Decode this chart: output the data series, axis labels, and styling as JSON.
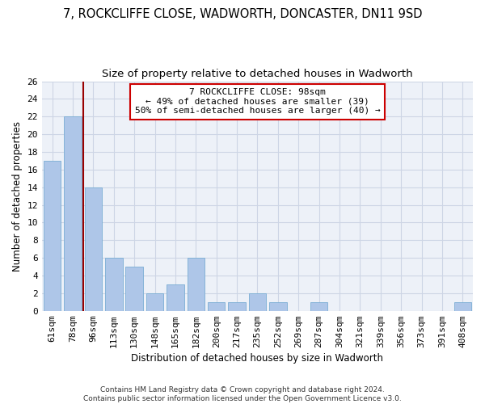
{
  "title": "7, ROCKCLIFFE CLOSE, WADWORTH, DONCASTER, DN11 9SD",
  "subtitle": "Size of property relative to detached houses in Wadworth",
  "xlabel": "Distribution of detached houses by size in Wadworth",
  "ylabel": "Number of detached properties",
  "categories": [
    "61sqm",
    "78sqm",
    "96sqm",
    "113sqm",
    "130sqm",
    "148sqm",
    "165sqm",
    "182sqm",
    "200sqm",
    "217sqm",
    "235sqm",
    "252sqm",
    "269sqm",
    "287sqm",
    "304sqm",
    "321sqm",
    "339sqm",
    "356sqm",
    "373sqm",
    "391sqm",
    "408sqm"
  ],
  "values": [
    17,
    22,
    14,
    6,
    5,
    2,
    3,
    6,
    1,
    1,
    2,
    1,
    0,
    1,
    0,
    0,
    0,
    0,
    0,
    0,
    1
  ],
  "bar_color": "#aec6e8",
  "bar_edge_color": "#7aadd4",
  "vline_x_idx": 1,
  "vline_color": "#990000",
  "annotation_box_text": "7 ROCKCLIFFE CLOSE: 98sqm\n← 49% of detached houses are smaller (39)\n50% of semi-detached houses are larger (40) →",
  "annotation_box_color": "#cc0000",
  "annotation_box_bg": "#ffffff",
  "ylim": [
    0,
    26
  ],
  "yticks": [
    0,
    2,
    4,
    6,
    8,
    10,
    12,
    14,
    16,
    18,
    20,
    22,
    24,
    26
  ],
  "grid_color": "#cdd5e5",
  "bg_color": "#edf1f8",
  "footer": "Contains HM Land Registry data © Crown copyright and database right 2024.\nContains public sector information licensed under the Open Government Licence v3.0.",
  "title_fontsize": 10.5,
  "subtitle_fontsize": 9.5,
  "xlabel_fontsize": 8.5,
  "ylabel_fontsize": 8.5,
  "tick_fontsize": 8,
  "annot_fontsize": 8,
  "footer_fontsize": 6.5
}
